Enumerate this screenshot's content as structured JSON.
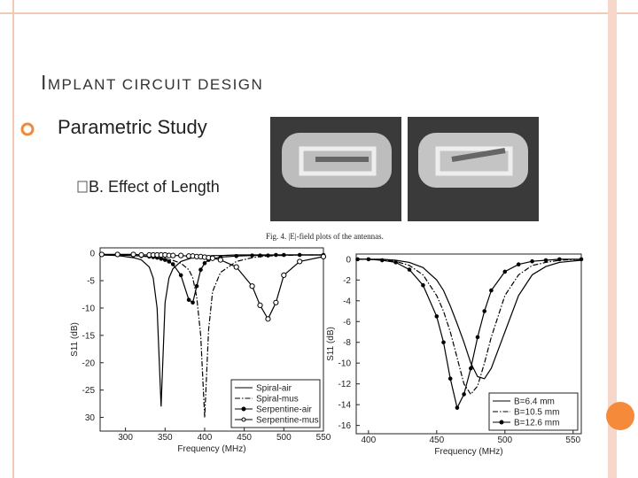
{
  "slide": {
    "title": "IMPLANT CIRCUIT DESIGN",
    "bullet": "Parametric Study",
    "sub_bullet": "B. Effect of Length",
    "figure_caption": "Fig. 4. |E|-field plots of the antennas."
  },
  "chart_data": [
    {
      "type": "line",
      "xlabel": "Frequency (MHz)",
      "ylabel": "S11 (dB)",
      "x": [
        270,
        290,
        310,
        320,
        330,
        335,
        340,
        345,
        350,
        355,
        360,
        370,
        380,
        385,
        390,
        395,
        400,
        405,
        410,
        420,
        440,
        460,
        470,
        480,
        490,
        500,
        520,
        550
      ],
      "xlim": [
        268,
        550
      ],
      "xticks": [
        300,
        350,
        400,
        450,
        500,
        550
      ],
      "ylim": [
        -32.5,
        1
      ],
      "yticks": [
        0,
        -5,
        -10,
        -15,
        -20,
        -25,
        {
          "value": -30,
          "label": "30"
        }
      ],
      "legend": "lower right",
      "series": [
        {
          "name": "Spiral-air",
          "color": "#000000",
          "linestyle": "solid",
          "marker": "none",
          "values": [
            -0.3,
            -0.4,
            -0.8,
            -1.2,
            -2.5,
            -4.5,
            -10,
            -28,
            -9,
            -4.5,
            -2.8,
            -1.5,
            -1,
            -0.8,
            -0.7,
            -0.6,
            -0.5,
            -0.5,
            -0.4,
            -0.4,
            -0.3,
            -0.3,
            -0.3,
            -0.3,
            -0.3,
            -0.3,
            -0.3,
            -0.3
          ]
        },
        {
          "name": "Spiral-mus",
          "color": "#000000",
          "linestyle": "dashdot",
          "marker": "none",
          "values": [
            -0.2,
            -0.3,
            -0.4,
            -0.5,
            -0.6,
            -0.7,
            -0.8,
            -0.9,
            -1,
            -1.1,
            -1.3,
            -1.8,
            -3,
            -4.5,
            -8,
            -15,
            -30,
            -14,
            -7,
            -3.5,
            -1.5,
            -0.8,
            -0.6,
            -0.5,
            -0.4,
            -0.4,
            -0.3,
            -0.3
          ]
        },
        {
          "name": "Serpentine-air",
          "color": "#000000",
          "linestyle": "solid",
          "marker": "dot",
          "values": [
            -0.3,
            -0.3,
            -0.4,
            -0.5,
            -0.6,
            -0.7,
            -0.8,
            -1,
            -1.2,
            -1.5,
            -2,
            -4,
            -8.5,
            -9,
            -6,
            -3,
            -1.8,
            -1.2,
            -1,
            -0.7,
            -0.5,
            -0.4,
            -0.4,
            -0.4,
            -0.3,
            -0.3,
            -0.3,
            -0.3
          ]
        },
        {
          "name": "Serpentine-mus",
          "color": "#000000",
          "linestyle": "solid",
          "marker": "circle",
          "values": [
            -0.2,
            -0.2,
            -0.2,
            -0.3,
            -0.3,
            -0.3,
            -0.3,
            -0.3,
            -0.3,
            -0.4,
            -0.4,
            -0.4,
            -0.5,
            -0.5,
            -0.6,
            -0.6,
            -0.7,
            -0.8,
            -0.9,
            -1.2,
            -2.5,
            -6,
            -9.5,
            -12,
            -9,
            -4,
            -1.5,
            -0.6
          ]
        }
      ]
    },
    {
      "type": "line",
      "xlabel": "Frequency (MHz)",
      "ylabel": "S11 (dB)",
      "x": [
        392,
        400,
        410,
        420,
        430,
        440,
        450,
        455,
        460,
        465,
        470,
        475,
        480,
        485,
        490,
        500,
        510,
        520,
        530,
        540,
        556
      ],
      "xlim": [
        391,
        556
      ],
      "xticks": [
        400,
        450,
        500,
        550
      ],
      "ylim": [
        -16.8,
        0.5
      ],
      "yticks": [
        0,
        -2,
        -4,
        -6,
        -8,
        -10,
        -12,
        -14,
        -16
      ],
      "legend": "lower right",
      "series": [
        {
          "name": "B=6.4 mm",
          "color": "#000000",
          "linestyle": "solid",
          "marker": "none",
          "values": [
            0,
            0,
            0,
            -0.1,
            -0.3,
            -0.8,
            -2,
            -3,
            -4.5,
            -6.2,
            -8,
            -10,
            -11.3,
            -11.5,
            -10.5,
            -7,
            -3.5,
            -1.5,
            -0.7,
            -0.3,
            -0.1
          ]
        },
        {
          "name": "B=10.5 mm",
          "color": "#000000",
          "linestyle": "dashdot",
          "marker": "none",
          "values": [
            0,
            0,
            -0.1,
            -0.2,
            -0.6,
            -1.5,
            -3.5,
            -5,
            -7,
            -9.5,
            -12,
            -13,
            -12.2,
            -10,
            -7.5,
            -3.5,
            -1.5,
            -0.6,
            -0.3,
            -0.1,
            0
          ]
        },
        {
          "name": "B=12.6 mm",
          "color": "#000000",
          "linestyle": "solid",
          "marker": "dot",
          "values": [
            0,
            0,
            -0.1,
            -0.3,
            -1,
            -2.5,
            -5.5,
            -8,
            -11.5,
            -14.3,
            -13,
            -10.5,
            -7.5,
            -5,
            -3,
            -1.2,
            -0.5,
            -0.2,
            -0.1,
            0,
            0
          ]
        }
      ]
    }
  ]
}
